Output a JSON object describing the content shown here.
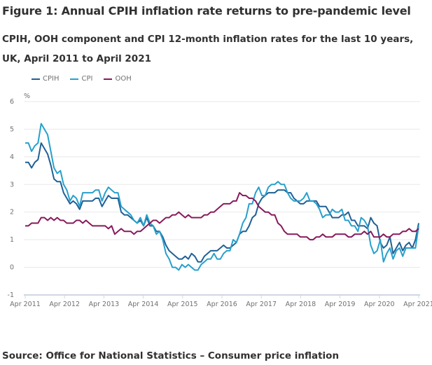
{
  "header": {
    "title": "Figure 1: Annual CPIH inflation rate returns to pre-pandemic level",
    "subtitle": "CPIH, OOH component and CPI 12-month inflation rates for the last 10 years, UK, April 2011 to April 2021"
  },
  "footer": {
    "source": "Source: Office for National Statistics – Consumer price inflation"
  },
  "chart_data": {
    "type": "line",
    "title": "Figure 1: Annual CPIH inflation rate returns to pre-pandemic level",
    "subtitle": "CPIH, OOH component and CPI 12-month inflation rates for the last 10 years, UK, April 2011 to April 2021",
    "xlabel": "",
    "ylabel": "%",
    "ylim": [
      -1,
      6
    ],
    "yticks": [
      -1,
      0,
      1,
      2,
      3,
      4,
      5,
      6
    ],
    "xticks": [
      "Apr 2011",
      "Apr 2012",
      "Apr 2013",
      "Apr 2014",
      "Apr 2015",
      "Apr 2016",
      "Apr 2017",
      "Apr 2018",
      "Apr 2019",
      "Apr 2020",
      "Apr 2021"
    ],
    "x_start": "Apr 2011",
    "x_end": "Apr 2021",
    "x_frequency": "monthly",
    "grid": true,
    "legend_position": "top-left",
    "series": [
      {
        "name": "CPIH",
        "color": "#206095",
        "values": [
          3.8,
          3.8,
          3.6,
          3.8,
          3.9,
          4.5,
          4.3,
          4.1,
          3.7,
          3.2,
          3.1,
          3.1,
          2.7,
          2.5,
          2.3,
          2.4,
          2.3,
          2.1,
          2.4,
          2.4,
          2.4,
          2.4,
          2.5,
          2.5,
          2.2,
          2.4,
          2.6,
          2.5,
          2.5,
          2.5,
          2.0,
          1.9,
          1.9,
          1.8,
          1.7,
          1.6,
          1.7,
          1.5,
          1.8,
          1.5,
          1.5,
          1.3,
          1.3,
          1.1,
          0.8,
          0.6,
          0.5,
          0.4,
          0.3,
          0.3,
          0.4,
          0.3,
          0.5,
          0.4,
          0.2,
          0.2,
          0.4,
          0.5,
          0.6,
          0.6,
          0.6,
          0.7,
          0.8,
          0.7,
          0.7,
          0.8,
          0.9,
          1.2,
          1.3,
          1.3,
          1.5,
          1.8,
          1.9,
          2.3,
          2.5,
          2.6,
          2.7,
          2.7,
          2.7,
          2.8,
          2.8,
          2.8,
          2.7,
          2.7,
          2.5,
          2.4,
          2.3,
          2.3,
          2.4,
          2.4,
          2.4,
          2.4,
          2.2,
          2.2,
          2.2,
          2.0,
          1.8,
          1.8,
          1.8,
          1.9,
          1.9,
          2.0,
          1.7,
          1.7,
          1.5,
          1.5,
          1.5,
          1.4,
          1.8,
          1.6,
          1.5,
          0.9,
          0.7,
          0.8,
          1.1,
          0.5,
          0.7,
          0.9,
          0.6,
          0.8,
          0.9,
          0.7,
          1.0,
          1.6
        ]
      },
      {
        "name": "CPI",
        "color": "#27a0cc",
        "values": [
          4.5,
          4.5,
          4.2,
          4.4,
          4.5,
          5.2,
          5.0,
          4.8,
          4.2,
          3.6,
          3.4,
          3.5,
          3.0,
          2.8,
          2.4,
          2.6,
          2.5,
          2.2,
          2.7,
          2.7,
          2.7,
          2.7,
          2.8,
          2.8,
          2.4,
          2.7,
          2.9,
          2.8,
          2.7,
          2.7,
          2.2,
          2.1,
          2.0,
          1.9,
          1.7,
          1.6,
          1.8,
          1.5,
          1.9,
          1.6,
          1.5,
          1.2,
          1.3,
          1.0,
          0.5,
          0.3,
          0.0,
          0.0,
          -0.1,
          0.1,
          0.0,
          0.1,
          0.0,
          -0.1,
          -0.1,
          0.1,
          0.2,
          0.3,
          0.3,
          0.5,
          0.3,
          0.3,
          0.5,
          0.6,
          0.6,
          1.0,
          0.9,
          1.2,
          1.6,
          1.8,
          2.3,
          2.3,
          2.7,
          2.9,
          2.6,
          2.6,
          2.9,
          3.0,
          3.0,
          3.1,
          3.0,
          3.0,
          2.7,
          2.5,
          2.4,
          2.4,
          2.4,
          2.5,
          2.7,
          2.4,
          2.4,
          2.3,
          2.1,
          1.8,
          1.9,
          1.9,
          2.1,
          2.0,
          2.0,
          2.1,
          1.7,
          1.7,
          1.5,
          1.5,
          1.3,
          1.8,
          1.7,
          1.5,
          0.8,
          0.5,
          0.6,
          1.0,
          0.2,
          0.5,
          0.7,
          0.3,
          0.6,
          0.7,
          0.4,
          0.7,
          0.7,
          0.7,
          0.7,
          1.5
        ]
      },
      {
        "name": "OOH",
        "color": "#871a5b",
        "values": [
          1.5,
          1.5,
          1.6,
          1.6,
          1.6,
          1.8,
          1.8,
          1.7,
          1.8,
          1.7,
          1.8,
          1.7,
          1.7,
          1.6,
          1.6,
          1.6,
          1.7,
          1.7,
          1.6,
          1.7,
          1.6,
          1.5,
          1.5,
          1.5,
          1.5,
          1.5,
          1.4,
          1.5,
          1.2,
          1.3,
          1.4,
          1.3,
          1.3,
          1.3,
          1.2,
          1.3,
          1.3,
          1.4,
          1.5,
          1.6,
          1.7,
          1.7,
          1.6,
          1.7,
          1.8,
          1.8,
          1.9,
          1.9,
          2.0,
          1.9,
          1.8,
          1.9,
          1.8,
          1.8,
          1.8,
          1.8,
          1.9,
          1.9,
          2.0,
          2.0,
          2.1,
          2.2,
          2.3,
          2.3,
          2.3,
          2.4,
          2.4,
          2.7,
          2.6,
          2.6,
          2.5,
          2.5,
          2.4,
          2.2,
          2.1,
          2.0,
          2.0,
          1.9,
          1.9,
          1.6,
          1.5,
          1.3,
          1.2,
          1.2,
          1.2,
          1.2,
          1.1,
          1.1,
          1.1,
          1.0,
          1.0,
          1.1,
          1.1,
          1.2,
          1.1,
          1.1,
          1.1,
          1.2,
          1.2,
          1.2,
          1.2,
          1.1,
          1.1,
          1.2,
          1.2,
          1.2,
          1.3,
          1.2,
          1.3,
          1.1,
          1.1,
          1.1,
          1.2,
          1.1,
          1.1,
          1.2,
          1.2,
          1.2,
          1.3,
          1.3,
          1.4,
          1.3,
          1.3,
          1.4
        ]
      }
    ]
  }
}
